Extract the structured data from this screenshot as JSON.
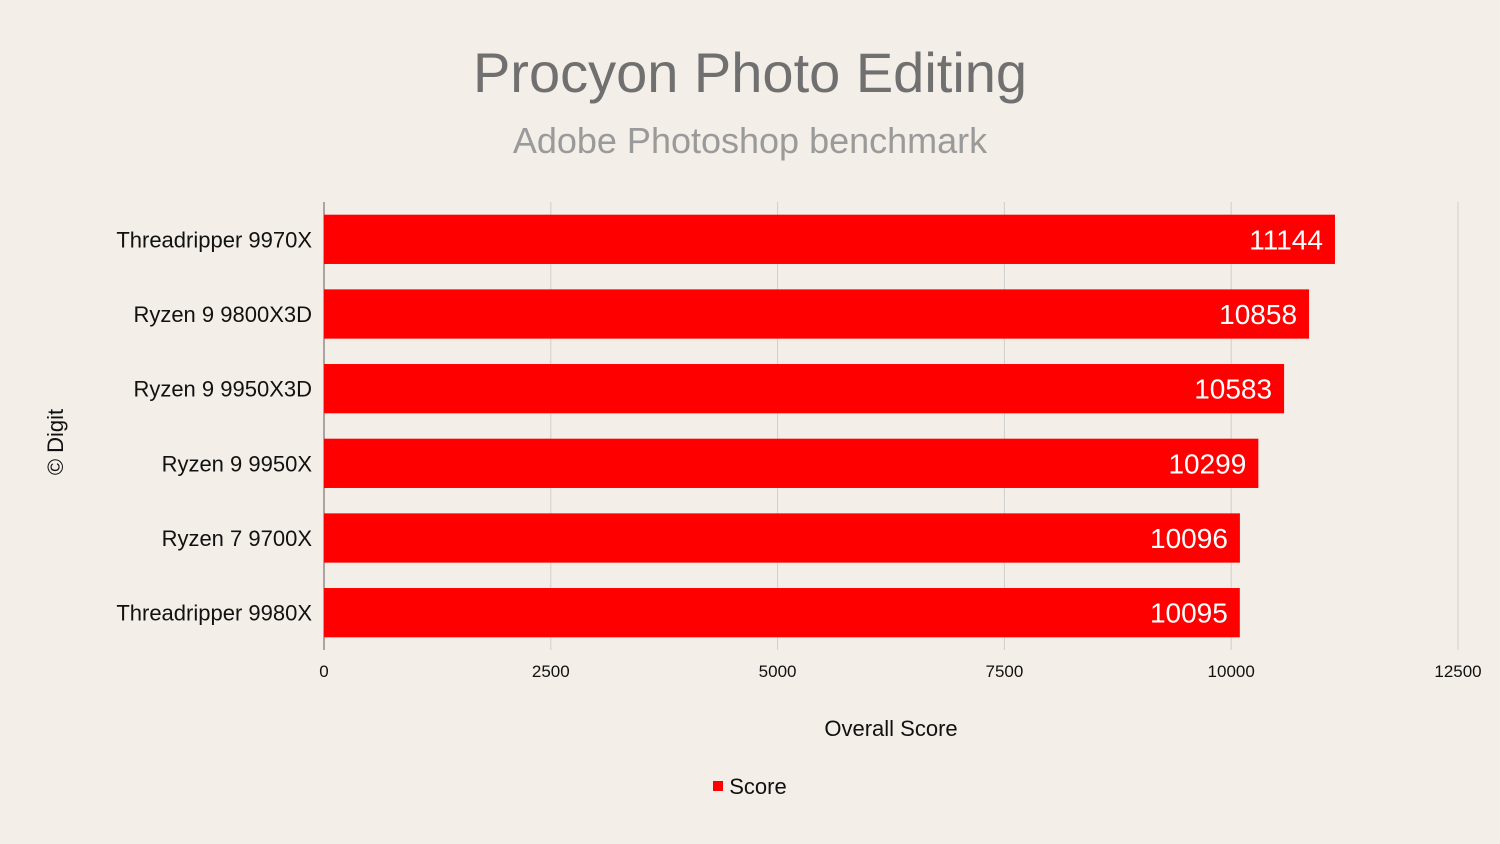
{
  "chart_data": {
    "type": "bar",
    "orientation": "horizontal",
    "title": "Procyon Photo Editing",
    "subtitle": "Adobe Photoshop benchmark",
    "xlabel": "Overall Score",
    "ylabel": "",
    "xlim": [
      0,
      12500
    ],
    "xticks": [
      0,
      2500,
      5000,
      7500,
      10000,
      12500
    ],
    "categories": [
      "Threadripper 9970X",
      "Ryzen 9 9800X3D",
      "Ryzen 9 9950X3D",
      "Ryzen 9 9950X",
      "Ryzen 7 9700X",
      "Threadripper 9980X"
    ],
    "series": [
      {
        "name": "Score",
        "values": [
          11144,
          10858,
          10583,
          10299,
          10096,
          10095
        ],
        "color": "#ff0000"
      }
    ],
    "grid": true,
    "legend": "bottom",
    "data_labels": true
  },
  "watermark": "© Digit",
  "colors": {
    "background": "#f3eee7",
    "bar": "#ff0000",
    "grid": "#cfcfcf"
  }
}
